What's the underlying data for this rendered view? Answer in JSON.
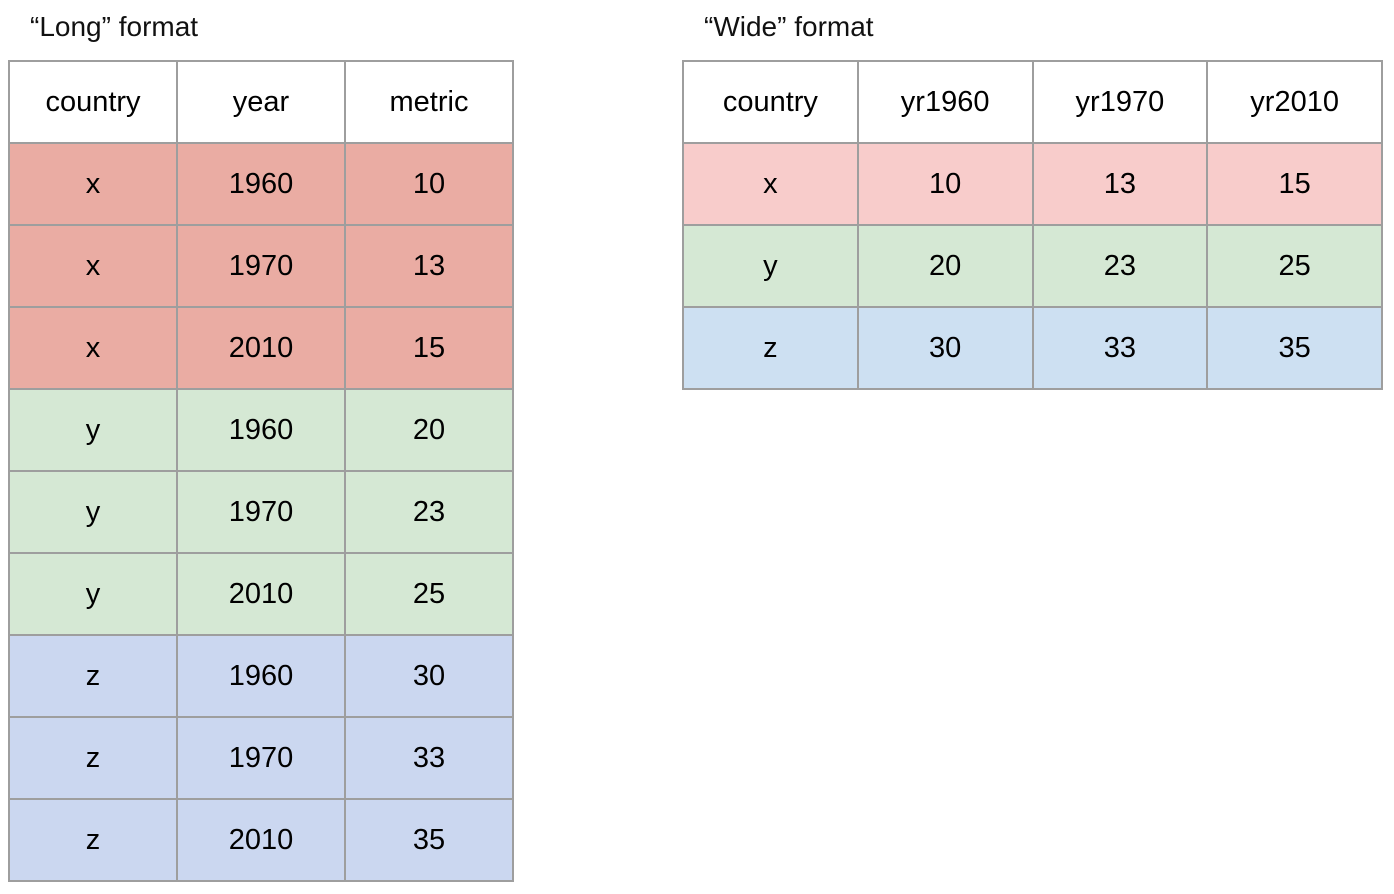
{
  "colors": {
    "background": "#ffffff",
    "border": "#9e9e9e",
    "header_bg": "#ffffff",
    "text": "#000000",
    "long_red": "#eaaca3",
    "long_green": "#d5e8d4",
    "long_blue": "#cbd7f0",
    "wide_pink": "#f8cccb",
    "wide_green": "#d5e8d4",
    "wide_blue": "#cde0f2"
  },
  "long_table": {
    "title": "“Long” format",
    "headers": [
      "country",
      "year",
      "metric"
    ],
    "rows": [
      {
        "color": "#eaaca3",
        "cells": [
          "x",
          "1960",
          "10"
        ]
      },
      {
        "color": "#eaaca3",
        "cells": [
          "x",
          "1970",
          "13"
        ]
      },
      {
        "color": "#eaaca3",
        "cells": [
          "x",
          "2010",
          "15"
        ]
      },
      {
        "color": "#d5e8d4",
        "cells": [
          "y",
          "1960",
          "20"
        ]
      },
      {
        "color": "#d5e8d4",
        "cells": [
          "y",
          "1970",
          "23"
        ]
      },
      {
        "color": "#d5e8d4",
        "cells": [
          "y",
          "2010",
          "25"
        ]
      },
      {
        "color": "#cbd7f0",
        "cells": [
          "z",
          "1960",
          "30"
        ]
      },
      {
        "color": "#cbd7f0",
        "cells": [
          "z",
          "1970",
          "33"
        ]
      },
      {
        "color": "#cbd7f0",
        "cells": [
          "z",
          "2010",
          "35"
        ]
      }
    ]
  },
  "wide_table": {
    "title": "“Wide” format",
    "headers": [
      "country",
      "yr1960",
      "yr1970",
      "yr2010"
    ],
    "rows": [
      {
        "color": "#f8cccb",
        "cells": [
          "x",
          "10",
          "13",
          "15"
        ]
      },
      {
        "color": "#d5e8d4",
        "cells": [
          "y",
          "20",
          "23",
          "25"
        ]
      },
      {
        "color": "#cde0f2",
        "cells": [
          "z",
          "30",
          "33",
          "35"
        ]
      }
    ]
  }
}
